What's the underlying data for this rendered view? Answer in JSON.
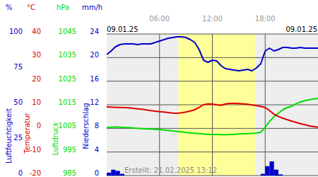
{
  "chart_data": {
    "type": "line",
    "date_start": "09.01.25",
    "date_end": "09.01.25",
    "created": "Erstellt: 21.02.2025 13:12",
    "xlim": [
      0,
      24
    ],
    "xticks": [
      {
        "value": 6,
        "label": "06:00"
      },
      {
        "value": 12,
        "label": "12:00"
      },
      {
        "value": 18,
        "label": "18:00"
      }
    ],
    "grid": true,
    "daylight": [
      8.15,
      16.9
    ],
    "x": [
      0,
      0.5,
      1,
      1.5,
      2,
      2.5,
      3,
      3.5,
      4,
      4.5,
      5,
      5.5,
      6,
      6.5,
      7,
      7.5,
      8,
      8.5,
      9,
      9.5,
      10,
      10.5,
      11,
      11.5,
      12,
      12.5,
      13,
      13.5,
      14,
      14.5,
      15,
      15.5,
      16,
      16.5,
      17,
      17.5,
      18,
      18.5,
      19,
      19.5,
      20,
      20.5,
      21,
      21.5,
      22,
      22.5,
      23,
      23.5,
      24
    ],
    "series": [
      {
        "name": "Luftfeuchtigkeit",
        "unit": "%",
        "type": "line",
        "color": "#0000cc",
        "ylim": [
          0,
          100
        ],
        "yticks": [
          0,
          25,
          50,
          75,
          100
        ],
        "values": [
          85.5,
          88,
          91,
          92.5,
          93,
          93,
          93,
          92.5,
          93,
          93,
          93,
          94,
          95,
          96,
          97,
          97.5,
          98,
          98,
          97.5,
          96,
          94,
          89,
          81.5,
          80,
          81.5,
          81,
          77.5,
          75.5,
          75,
          74.5,
          74,
          74.5,
          75,
          74,
          76,
          79,
          88,
          90,
          88,
          89,
          90.5,
          90.5,
          90,
          90,
          90.5,
          90,
          90,
          90,
          90
        ]
      },
      {
        "name": "Temperatur",
        "unit": "°C",
        "type": "line",
        "color": "#dd0000",
        "ylim": [
          -20,
          40
        ],
        "yticks": [
          -20,
          -10,
          0,
          10,
          20,
          30,
          40
        ],
        "values": [
          9.1,
          9.0,
          8.9,
          8.9,
          8.8,
          8.7,
          8.5,
          8.3,
          8.1,
          7.8,
          7.5,
          7.3,
          7.1,
          6.9,
          6.7,
          6.5,
          6.4,
          6.6,
          6.9,
          7.4,
          7.9,
          8.9,
          10.0,
          10.4,
          10.3,
          10.0,
          9.8,
          10.4,
          10.6,
          10.6,
          10.5,
          10.4,
          10.2,
          9.9,
          9.6,
          9.3,
          8.9,
          7.5,
          6.0,
          5.1,
          4.3,
          3.7,
          3.1,
          2.6,
          2.0,
          1.6,
          1.1,
          0.8,
          0.5
        ]
      },
      {
        "name": "Luftdruck",
        "unit": "hPa",
        "type": "line",
        "color": "#00dd00",
        "ylim": [
          985,
          1045
        ],
        "yticks": [
          985,
          995,
          1005,
          1015,
          1025,
          1035,
          1045
        ],
        "values": [
          1005.4,
          1005.5,
          1005.6,
          1005.5,
          1005.4,
          1005.3,
          1005.2,
          1005.0,
          1004.9,
          1004.8,
          1004.7,
          1004.6,
          1004.5,
          1004.3,
          1004.1,
          1003.9,
          1003.7,
          1003.5,
          1003.3,
          1003.1,
          1002.9,
          1002.8,
          1002.6,
          1002.5,
          1002.4,
          1002.4,
          1002.3,
          1002.3,
          1002.4,
          1002.5,
          1002.6,
          1002.7,
          1002.8,
          1002.9,
          1003.0,
          1003.4,
          1005.4,
          1008.0,
          1009.9,
          1011.4,
          1012.9,
          1013.8,
          1014.4,
          1015.4,
          1016.2,
          1016.7,
          1017.1,
          1017.5,
          1017.7
        ]
      },
      {
        "name": "Niederschlag",
        "unit": "mm/h",
        "type": "bar",
        "color": "#0000cc",
        "ylim": [
          0,
          24
        ],
        "yticks": [
          0,
          4,
          8,
          12,
          16,
          20,
          24
        ],
        "values": [
          0.5,
          1.0,
          0.8,
          0.3,
          0,
          0,
          0,
          0,
          0,
          0,
          0,
          0,
          0,
          0,
          0,
          0,
          0,
          0,
          0,
          0,
          0,
          0,
          0,
          0,
          0,
          0,
          0,
          0,
          0,
          0,
          0,
          0,
          0,
          0,
          0,
          0.3,
          1.6,
          2.4,
          1.0,
          0.2,
          0,
          0,
          0,
          0,
          0,
          0,
          0,
          0,
          0
        ]
      }
    ]
  }
}
